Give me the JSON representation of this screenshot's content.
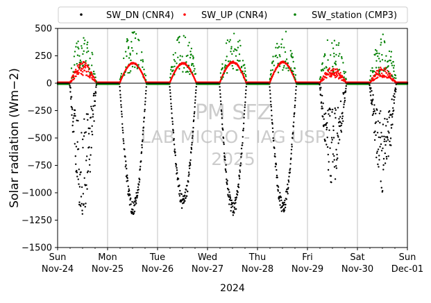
{
  "chart_data": {
    "type": "scatter",
    "title": "",
    "xlabel": "2024",
    "ylabel": "Solar radiation (Wm−2)",
    "ylim": [
      -1500,
      500
    ],
    "xlim": [
      "2024-11-24",
      "2024-12-01"
    ],
    "grid": "vertical gridlines at day boundaries",
    "legend": "top, horizontal, outside plot area",
    "yticks": [
      "500",
      "250",
      "0",
      "−250",
      "−500",
      "−750",
      "−1000",
      "−1250",
      "−1500"
    ],
    "xticks": [
      {
        "day": "Sun",
        "date": "Nov-24"
      },
      {
        "day": "Mon",
        "date": "Nov-25"
      },
      {
        "day": "Tue",
        "date": "Nov-26"
      },
      {
        "day": "Wed",
        "date": "Nov-27"
      },
      {
        "day": "Thu",
        "date": "Nov-28"
      },
      {
        "day": "Fri",
        "date": "Nov-29"
      },
      {
        "day": "Sat",
        "date": "Nov-30"
      },
      {
        "day": "Sun",
        "date": "Dec-01"
      }
    ],
    "watermark": [
      "PM SFZ",
      "LAB MICRO - IAG USP",
      "2025"
    ],
    "daily_peaks": [
      {
        "date": "2024-11-24",
        "sw_dn_min": -1230,
        "sw_up_max": 200,
        "station_max": 480
      },
      {
        "date": "2024-11-25",
        "sw_dn_min": -1220,
        "sw_up_max": 190,
        "station_max": 490
      },
      {
        "date": "2024-11-26",
        "sw_dn_min": -1150,
        "sw_up_max": 190,
        "station_max": 490
      },
      {
        "date": "2024-11-27",
        "sw_dn_min": -1230,
        "sw_up_max": 200,
        "station_max": 490
      },
      {
        "date": "2024-11-28",
        "sw_dn_min": -1200,
        "sw_up_max": 200,
        "station_max": 490
      },
      {
        "date": "2024-11-29",
        "sw_dn_min": -940,
        "sw_up_max": 150,
        "station_max": 470
      },
      {
        "date": "2024-11-30",
        "sw_dn_min": -1000,
        "sw_up_max": 150,
        "station_max": 460
      }
    ],
    "series": [
      {
        "name": "SW_DN (CNR4)",
        "color": "#000000",
        "marker": "dot"
      },
      {
        "name": "SW_UP (CNR4)",
        "color": "#ff0000",
        "marker": "dot"
      },
      {
        "name": "SW_station (CMP3)",
        "color": "#008000",
        "marker": "dot"
      }
    ]
  }
}
